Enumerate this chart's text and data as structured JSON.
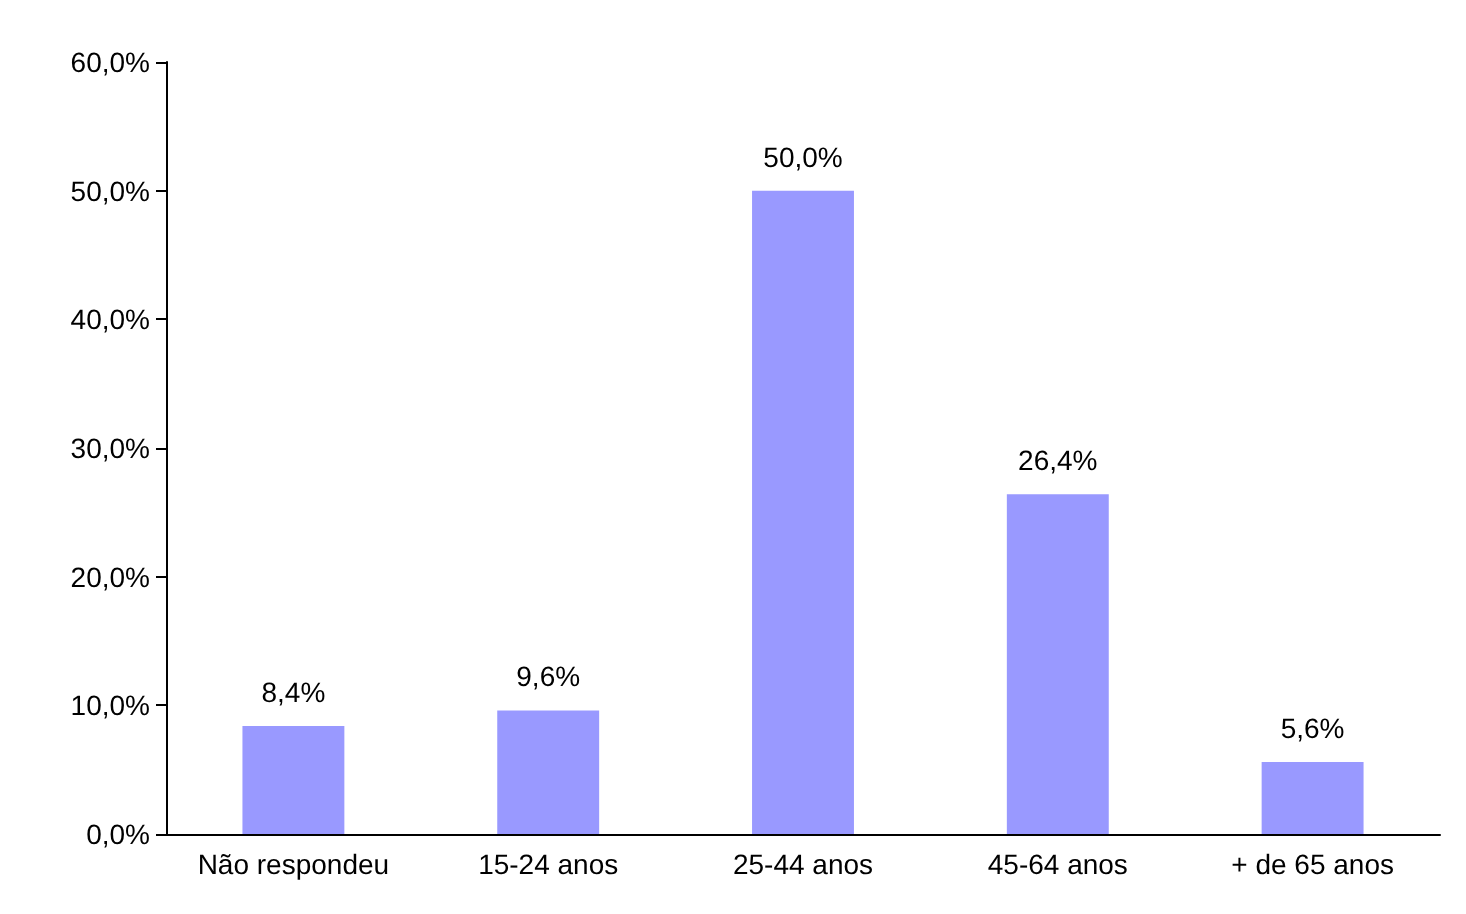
{
  "chart_data": {
    "type": "bar",
    "categories": [
      "Não respondeu",
      "15-24 anos",
      "25-44 anos",
      "45-64 anos",
      "+ de 65 anos"
    ],
    "values": [
      8.4,
      9.6,
      50.0,
      26.4,
      5.6
    ],
    "value_labels": [
      "8,4%",
      "9,6%",
      "50,0%",
      "26,4%",
      "5,6%"
    ],
    "color": "#9999ff",
    "ylim": [
      0,
      60
    ],
    "yticks": [
      {
        "value": 0,
        "label": "0,0%"
      },
      {
        "value": 10,
        "label": "10,0%"
      },
      {
        "value": 20,
        "label": "20,0%"
      },
      {
        "value": 30,
        "label": "30,0%"
      },
      {
        "value": 40,
        "label": "40,0%"
      },
      {
        "value": 50,
        "label": "50,0%"
      },
      {
        "value": 60,
        "label": "60,0%"
      }
    ],
    "grid": false
  }
}
